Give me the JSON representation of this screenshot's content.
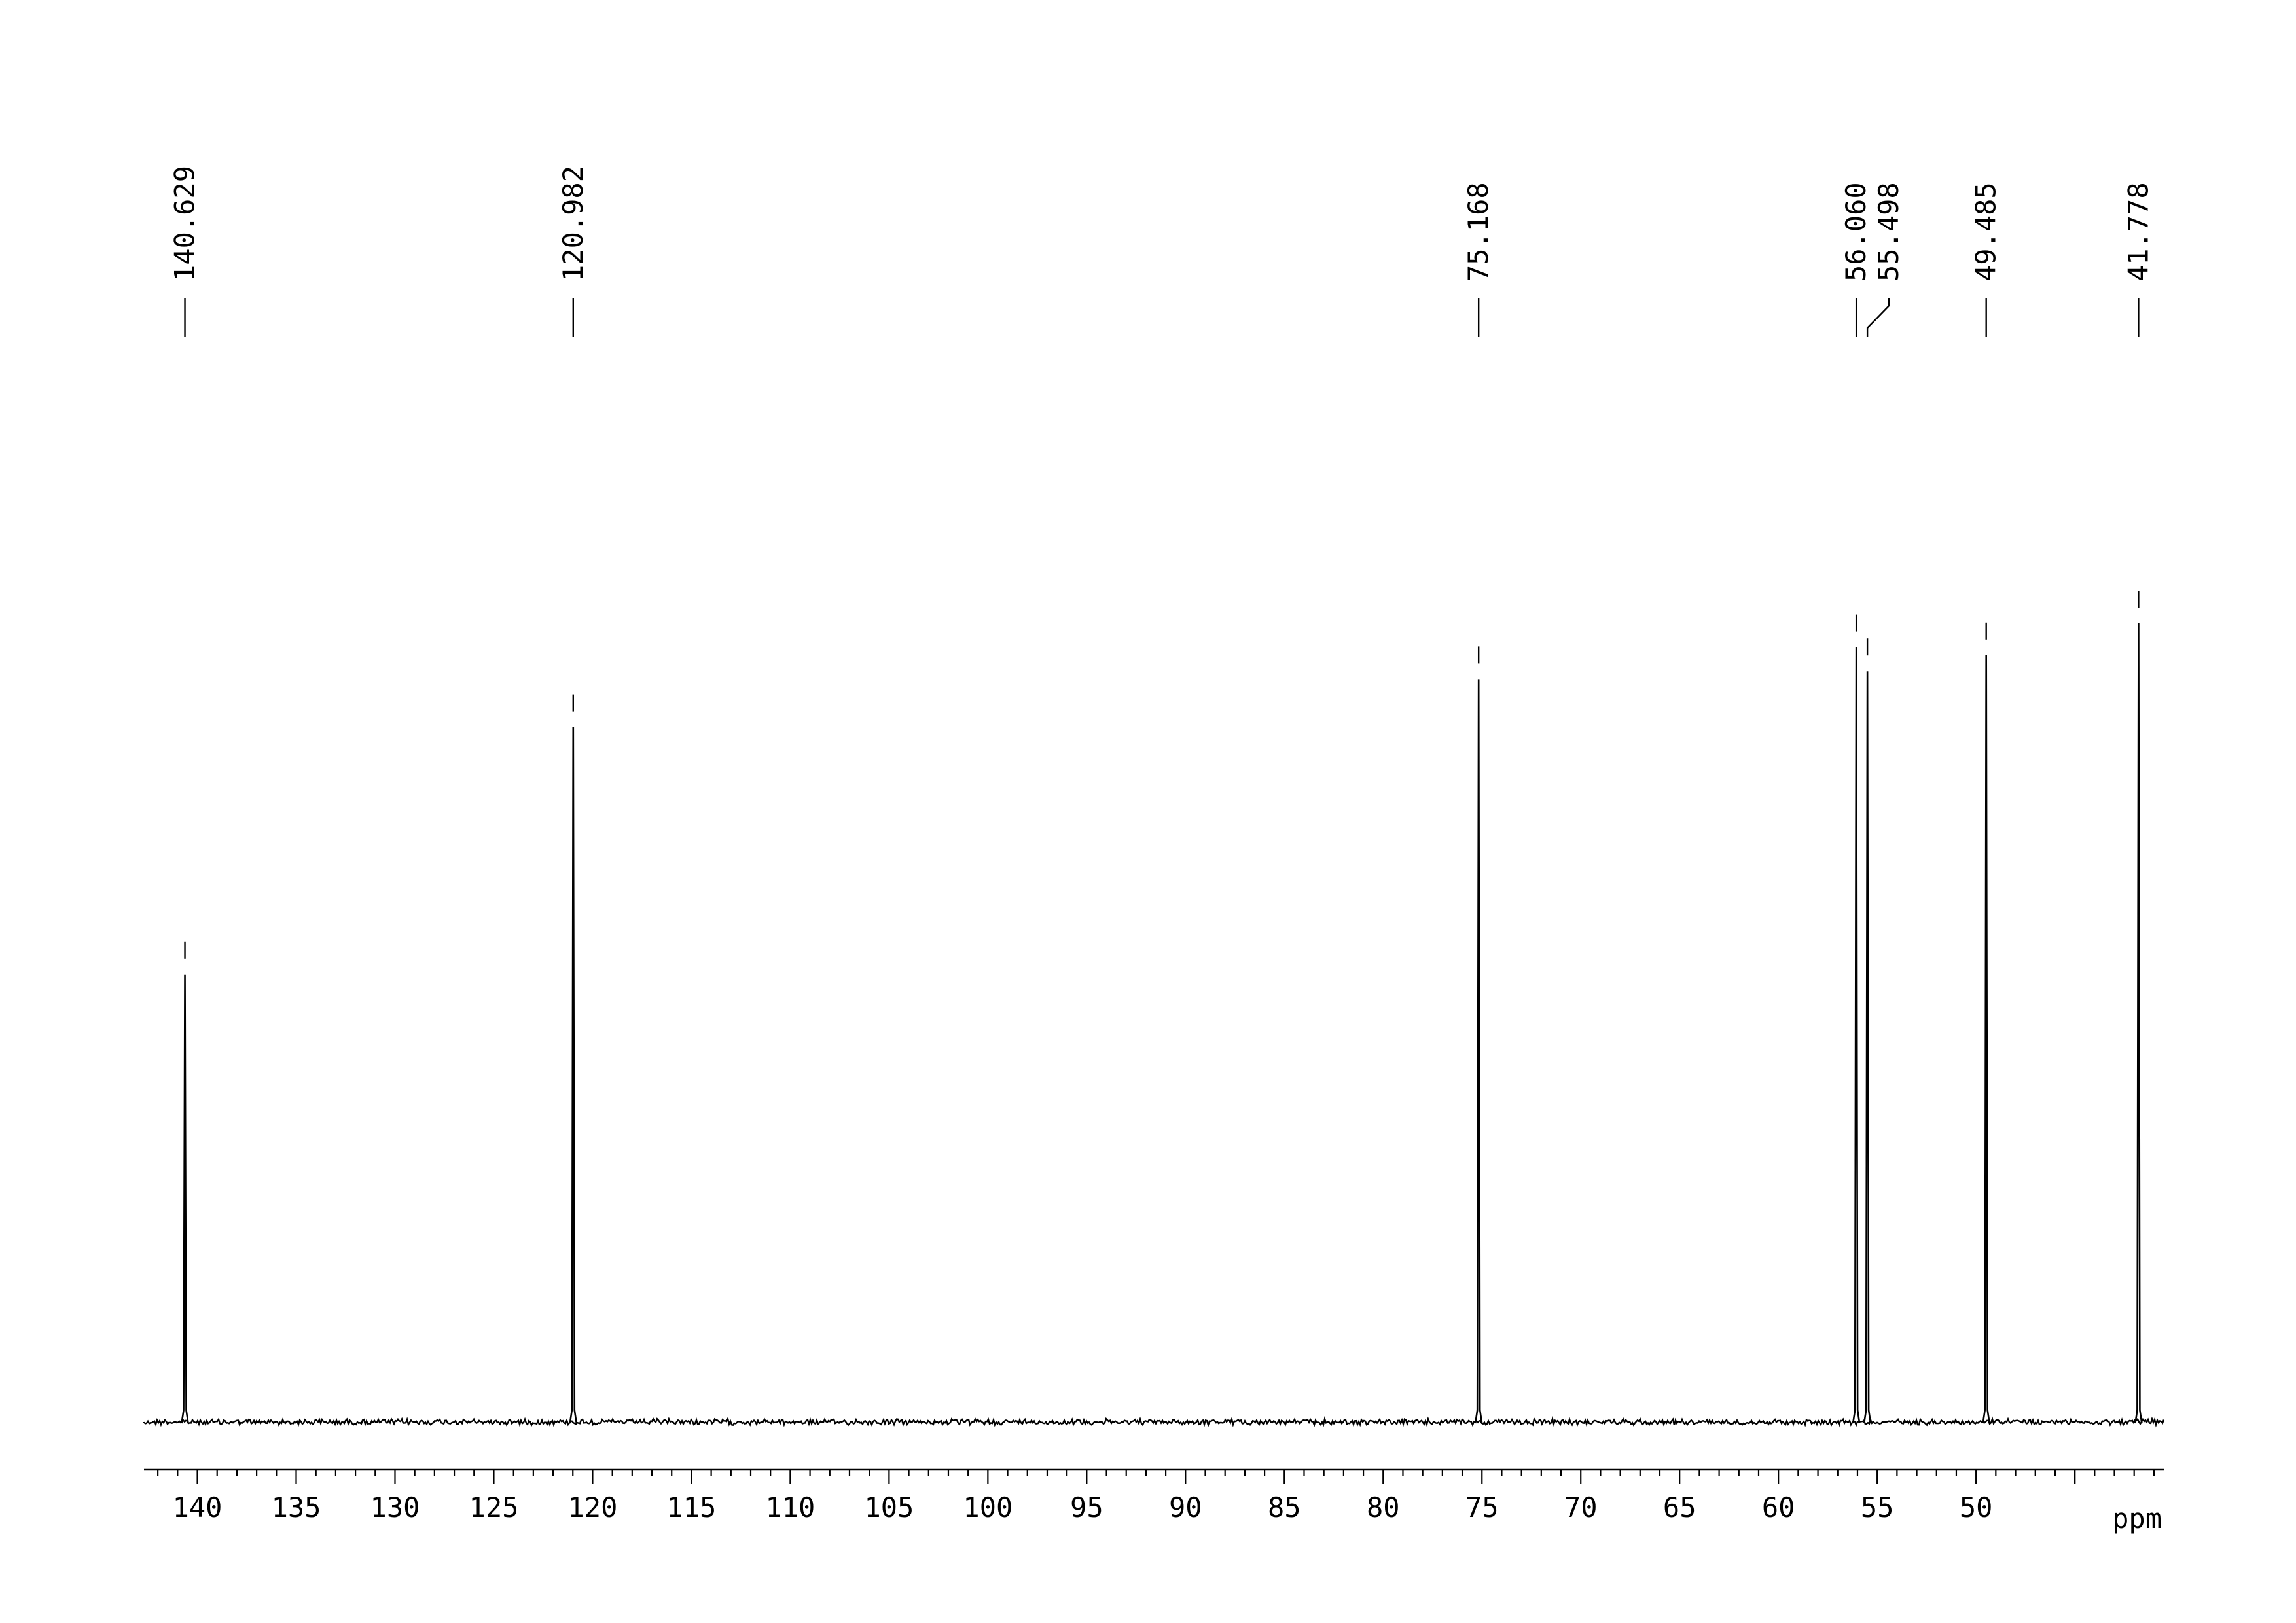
{
  "chart_data": {
    "type": "line",
    "title": "",
    "xlabel": "ppm",
    "ylabel": "",
    "x_reversed": true,
    "xlim": [
      142.7,
      40.5
    ],
    "x_ticks": [
      140,
      135,
      130,
      125,
      120,
      115,
      110,
      105,
      100,
      95,
      90,
      85,
      80,
      75,
      70,
      65,
      60,
      55,
      50
    ],
    "x_tick_labels": [
      "140",
      "135",
      "130",
      "125",
      "120",
      "115",
      "110",
      "105",
      "100",
      "95",
      "90",
      "85",
      "80",
      "75",
      "70",
      "65",
      "60",
      "55",
      "50"
    ],
    "grid": false,
    "legend": "none",
    "peaks": [
      {
        "ppm": 140.629,
        "label": "140.629",
        "relative_height": 0.56
      },
      {
        "ppm": 120.982,
        "label": "120.982",
        "relative_height": 0.87
      },
      {
        "ppm": 75.168,
        "label": "75.168",
        "relative_height": 0.93
      },
      {
        "ppm": 56.06,
        "label": "56.060",
        "relative_height": 0.97
      },
      {
        "ppm": 55.498,
        "label": "55.498",
        "relative_height": 0.94
      },
      {
        "ppm": 49.485,
        "label": "49.485",
        "relative_height": 0.96
      },
      {
        "ppm": 41.778,
        "label": "41.778",
        "relative_height": 1.0
      }
    ],
    "colors": {
      "trace": "#000000",
      "axis": "#000000"
    }
  }
}
